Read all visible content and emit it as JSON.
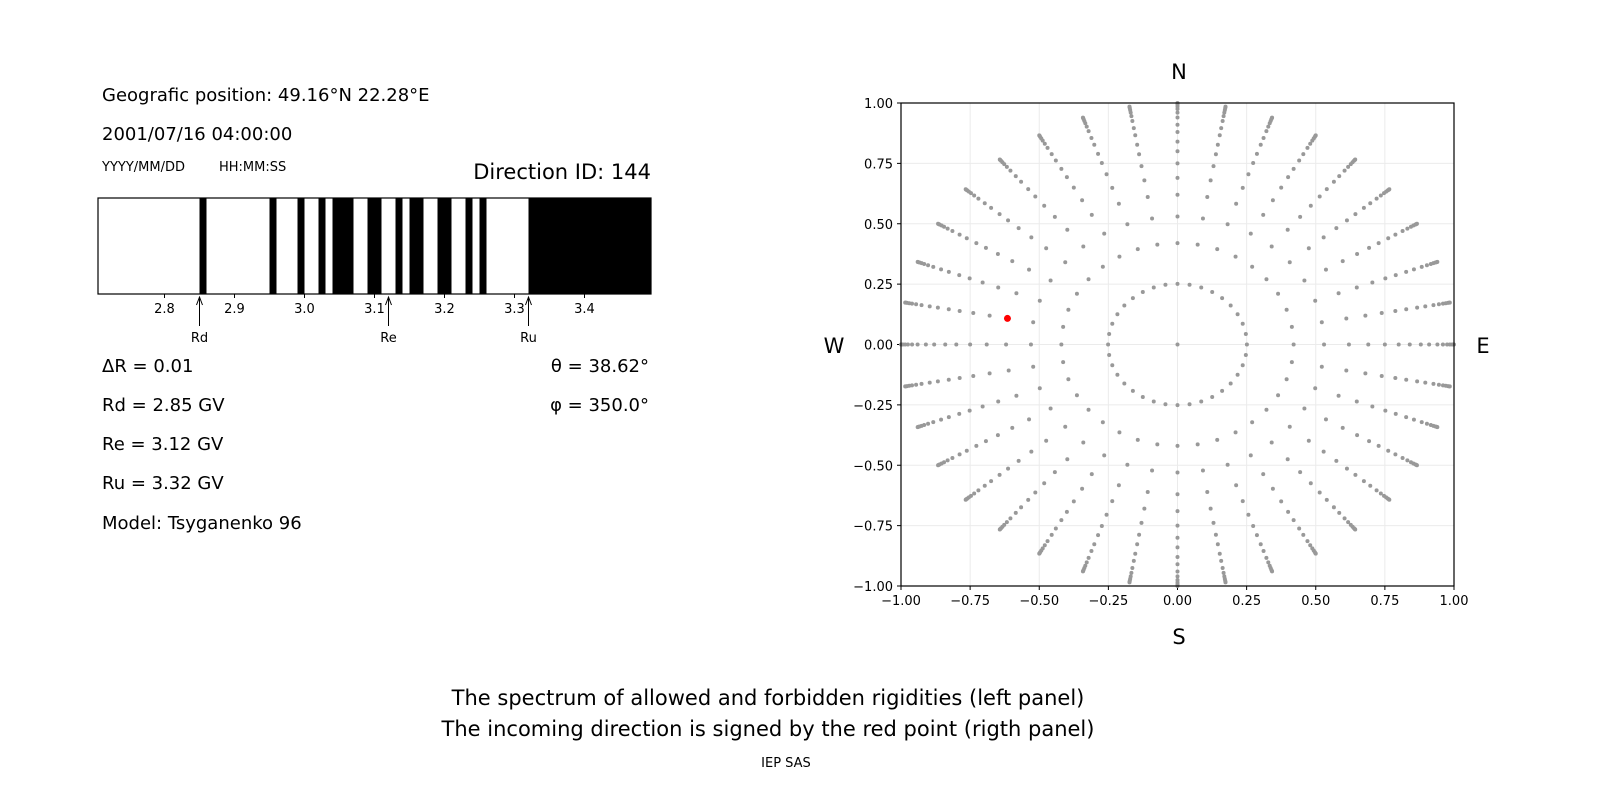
{
  "left_panel": {
    "position": "Geografic position: 49.16°N 22.28°E",
    "datetime": "2001/07/16 04:00:00",
    "date_format": "YYYY/MM/DD",
    "time_format": "HH:MM:SS",
    "direction_id": "Direction ID: 144",
    "delta_r": "ΔR = 0.01",
    "rd": "Rd = 2.85 GV",
    "re": "Re = 3.12 GV",
    "ru": "Ru = 3.32 GV",
    "model": "Model: Tsyganenko 96",
    "theta": "θ = 38.62°",
    "phi": "φ = 350.0°"
  },
  "footer": {
    "line1": "The spectrum of allowed and forbidden rigidities (left panel)",
    "line2": "The incoming direction is signed by the red point (rigth panel)",
    "credit": "IEP SAS"
  },
  "chart_data": [
    {
      "type": "bar",
      "description_kind": "rigidity spectrum (white = allowed, black = forbidden)",
      "xlim": [
        2.705,
        3.495
      ],
      "xticks": [
        "2.8",
        "2.9",
        "3.0",
        "3.1",
        "3.2",
        "3.3",
        "3.4"
      ],
      "xtick_values": [
        2.8,
        2.9,
        3.0,
        3.1,
        3.2,
        3.3,
        3.4
      ],
      "forbidden_bands": [
        [
          2.85,
          2.86
        ],
        [
          2.95,
          2.96
        ],
        [
          2.99,
          3.0
        ],
        [
          3.02,
          3.03
        ],
        [
          3.04,
          3.07
        ],
        [
          3.09,
          3.11
        ],
        [
          3.13,
          3.14
        ],
        [
          3.15,
          3.17
        ],
        [
          3.19,
          3.21
        ],
        [
          3.23,
          3.24
        ],
        [
          3.25,
          3.26
        ],
        [
          3.32,
          3.495
        ]
      ],
      "annotations": [
        {
          "label": "Rd",
          "x": 2.85
        },
        {
          "label": "Re",
          "x": 3.12
        },
        {
          "label": "Ru",
          "x": 3.32
        }
      ],
      "colors": {
        "forbidden": "#000000",
        "allowed": "#ffffff"
      }
    },
    {
      "type": "scatter",
      "xlim": [
        -1,
        1
      ],
      "ylim": [
        -1,
        1
      ],
      "xticks": [
        "−1.00",
        "−0.75",
        "−0.50",
        "−0.25",
        "0.00",
        "0.25",
        "0.50",
        "0.75",
        "1.00"
      ],
      "yticks": [
        "−1.00",
        "−0.75",
        "−0.50",
        "−0.25",
        "0.00",
        "0.25",
        "0.50",
        "0.75",
        "1.00"
      ],
      "tick_values": [
        -1,
        -0.75,
        -0.5,
        -0.25,
        0,
        0.25,
        0.5,
        0.75,
        1
      ],
      "compass": {
        "n": "N",
        "s": "S",
        "w": "W",
        "e": "E"
      },
      "grid": true,
      "grid_azimuth_step_deg": 10,
      "grid_radii": [
        0.251,
        0.42,
        0.53,
        0.62,
        0.69,
        0.75,
        0.8,
        0.84,
        0.88,
        0.91,
        0.94,
        0.96,
        0.975,
        0.985,
        0.993,
        0.998,
        1.0
      ],
      "highlight": {
        "x": -0.615,
        "y": 0.108,
        "color": "#ff0000"
      },
      "colors": {
        "points": "#999999"
      }
    }
  ]
}
